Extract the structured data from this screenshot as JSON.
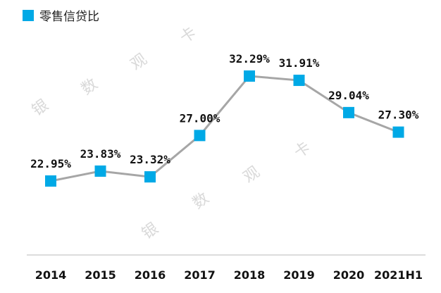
{
  "legend": {
    "label": "零售信贷比",
    "marker_color": "#00a9e6"
  },
  "watermark": {
    "chars": [
      "银",
      "数",
      "观",
      "卡"
    ]
  },
  "colors": {
    "line": "#a6a6a6",
    "marker": "#00a9e6",
    "axis": "#dcdcdc"
  },
  "chart_data": {
    "type": "line",
    "categories": [
      "2014",
      "2015",
      "2016",
      "2017",
      "2018",
      "2019",
      "2020",
      "2021H1"
    ],
    "series": [
      {
        "name": "零售信贷比",
        "values": [
          22.95,
          23.83,
          23.32,
          27.0,
          32.29,
          31.91,
          29.04,
          27.3
        ],
        "labels": [
          "22.95%",
          "23.83%",
          "23.32%",
          "27.00%",
          "32.29%",
          "31.91%",
          "29.04%",
          "27.30%"
        ]
      }
    ],
    "title": "",
    "xlabel": "",
    "ylabel": "",
    "ylim": [
      16,
      35
    ],
    "grid": false,
    "legend_position": "top-left"
  }
}
